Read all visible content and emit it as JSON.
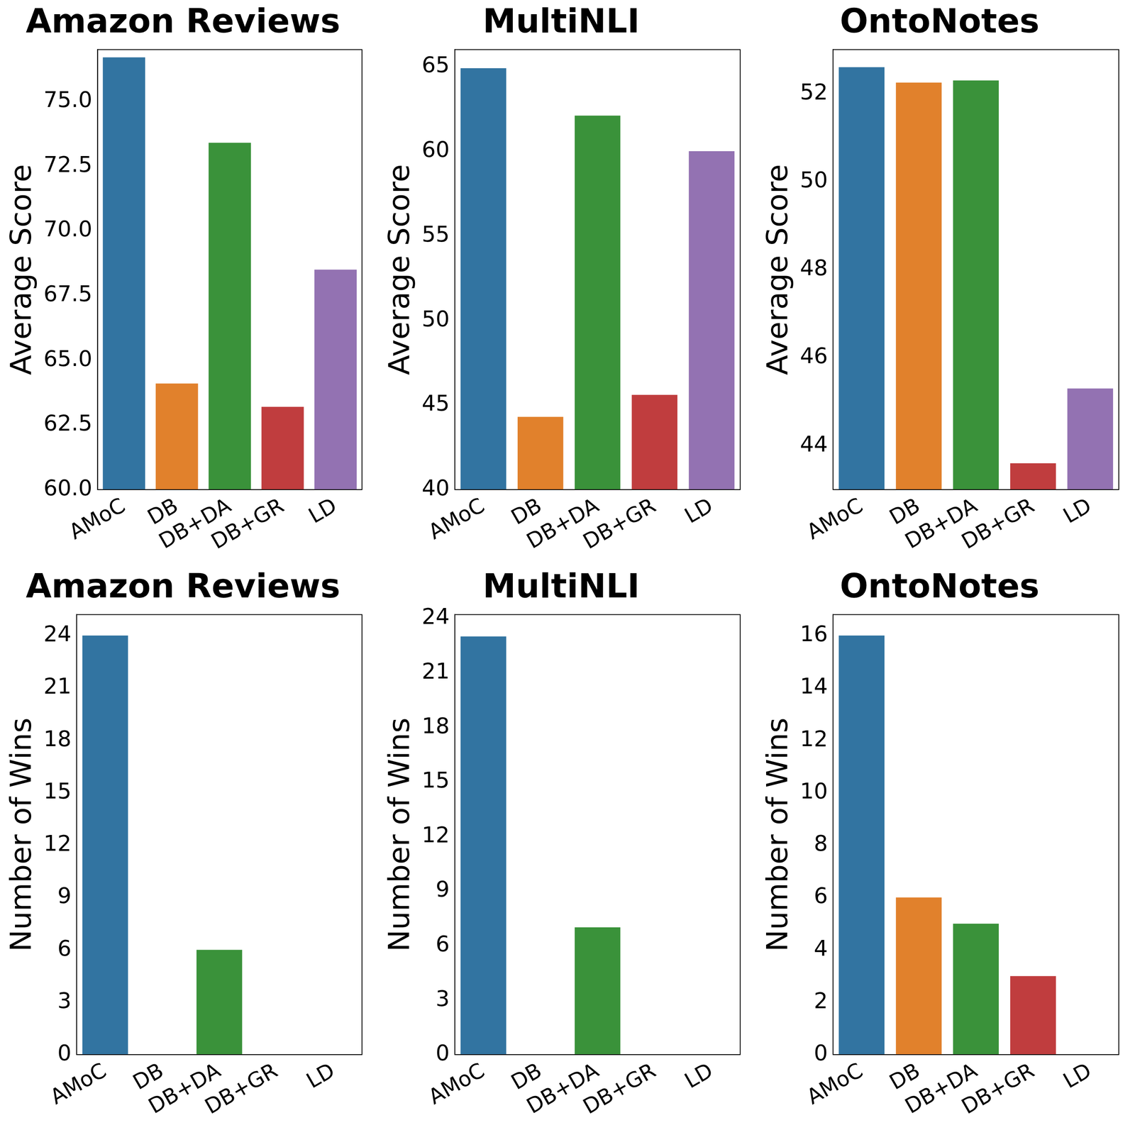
{
  "chart_data": [
    {
      "type": "bar",
      "title": "Amazon Reviews",
      "ylabel": "Average Score",
      "categories": [
        "AMoC",
        "DB",
        "DB+DA",
        "DB+GR",
        "LD"
      ],
      "values": [
        76.7,
        64.1,
        73.4,
        63.2,
        68.5
      ],
      "colors": [
        "#3274a1",
        "#e1812c",
        "#3a923a",
        "#c03d3e",
        "#9372b2"
      ],
      "ylim": [
        60,
        77
      ],
      "yticks": [
        {
          "value": 60,
          "label": "60.0"
        },
        62.5,
        {
          "value": 65,
          "label": "65.0"
        },
        67.5,
        {
          "value": 70,
          "label": "70.0"
        },
        72.5,
        {
          "value": 75,
          "label": "75.0"
        }
      ],
      "grid": false
    },
    {
      "type": "bar",
      "title": "MultiNLI",
      "ylabel": "Average Score",
      "categories": [
        "AMoC",
        "DB",
        "DB+DA",
        "DB+GR",
        "LD"
      ],
      "values": [
        64.9,
        44.3,
        62.1,
        45.6,
        60.0
      ],
      "colors": [
        "#3274a1",
        "#e1812c",
        "#3a923a",
        "#c03d3e",
        "#9372b2"
      ],
      "ylim": [
        40,
        66
      ],
      "yticks": [
        40,
        45,
        50,
        55,
        60,
        65
      ],
      "grid": false
    },
    {
      "type": "bar",
      "title": "OntoNotes",
      "ylabel": "Average Score",
      "categories": [
        "AMoC",
        "DB",
        "DB+DA",
        "DB+GR",
        "LD"
      ],
      "values": [
        52.6,
        52.25,
        52.3,
        43.6,
        45.3
      ],
      "colors": [
        "#3274a1",
        "#e1812c",
        "#3a923a",
        "#c03d3e",
        "#9372b2"
      ],
      "ylim": [
        43,
        53
      ],
      "yticks": [
        44,
        46,
        48,
        50,
        52
      ],
      "grid": false
    },
    {
      "type": "bar",
      "title": "Amazon Reviews",
      "ylabel": "Number of Wins",
      "categories": [
        "AMoC",
        "DB",
        "DB+DA",
        "DB+GR",
        "LD"
      ],
      "values": [
        24,
        0,
        6,
        0,
        0
      ],
      "colors": [
        "#3274a1",
        "#e1812c",
        "#3a923a",
        "#c03d3e",
        "#9372b2"
      ],
      "ylim": [
        0,
        25.2
      ],
      "yticks": [
        0,
        3,
        6,
        9,
        12,
        15,
        18,
        21,
        24
      ],
      "grid": false
    },
    {
      "type": "bar",
      "title": "MultiNLI",
      "ylabel": "Number of Wins",
      "categories": [
        "AMoC",
        "DB",
        "DB+DA",
        "DB+GR",
        "LD"
      ],
      "values": [
        23,
        0,
        7,
        0,
        0
      ],
      "colors": [
        "#3274a1",
        "#e1812c",
        "#3a923a",
        "#c03d3e",
        "#9372b2"
      ],
      "ylim": [
        0,
        24.2
      ],
      "yticks": [
        0,
        3,
        6,
        9,
        12,
        15,
        18,
        21,
        24
      ],
      "grid": false
    },
    {
      "type": "bar",
      "title": "OntoNotes",
      "ylabel": "Number of Wins",
      "categories": [
        "AMoC",
        "DB",
        "DB+DA",
        "DB+GR",
        "LD"
      ],
      "values": [
        16,
        6,
        5,
        3,
        0
      ],
      "colors": [
        "#3274a1",
        "#e1812c",
        "#3a923a",
        "#c03d3e",
        "#9372b2"
      ],
      "ylim": [
        0,
        16.8
      ],
      "yticks": [
        0,
        2,
        4,
        6,
        8,
        10,
        12,
        14,
        16
      ],
      "grid": false
    }
  ]
}
